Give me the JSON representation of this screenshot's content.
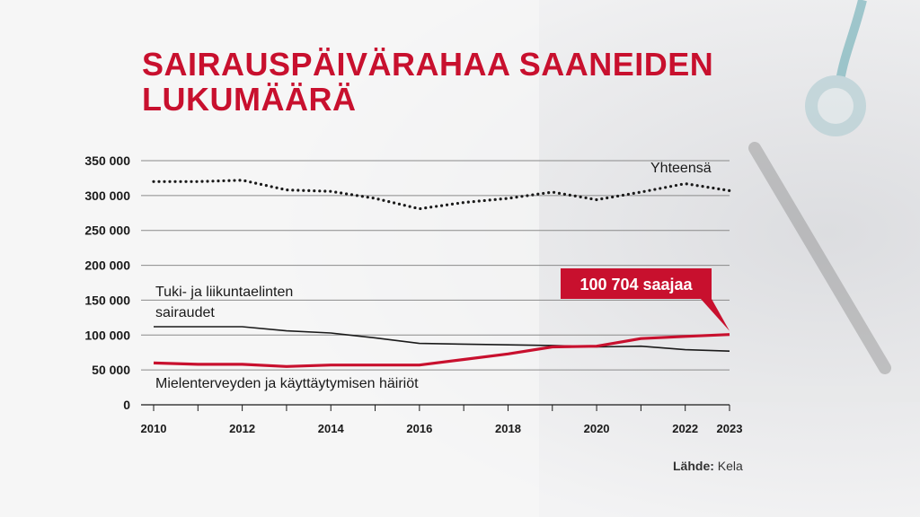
{
  "title": {
    "line1": "SAIRAUSPÄIVÄRAHAA SAANEIDEN",
    "line2": "LUKUMÄÄRÄ"
  },
  "source": {
    "label": "Lähde:",
    "value": "Kela"
  },
  "colors": {
    "accent": "#c8102e",
    "text": "#1a1a1a",
    "grid": "#8a8a8a"
  },
  "chart_data": {
    "type": "line",
    "title": "SAIRAUSPÄIVÄRAHAA SAANEIDEN LUKUMÄÄRÄ",
    "xlabel": "",
    "ylabel": "",
    "x": [
      2010,
      2011,
      2012,
      2013,
      2014,
      2015,
      2016,
      2017,
      2018,
      2019,
      2020,
      2021,
      2022,
      2023
    ],
    "xticks": [
      "2010",
      "2012",
      "2014",
      "2016",
      "2018",
      "2020",
      "2022",
      "2023"
    ],
    "xlim": [
      2010,
      2023
    ],
    "ylim": [
      0,
      350000
    ],
    "yticks": [
      {
        "value": 0,
        "label": "0"
      },
      {
        "value": 50000,
        "label": "50 000"
      },
      {
        "value": 100000,
        "label": "100 000"
      },
      {
        "value": 150000,
        "label": "150 000"
      },
      {
        "value": 200000,
        "label": "200 000"
      },
      {
        "value": 250000,
        "label": "250 000"
      },
      {
        "value": 300000,
        "label": "300 000"
      },
      {
        "value": 350000,
        "label": "350 000"
      }
    ],
    "grid": true,
    "series": [
      {
        "name": "Yhteensä",
        "style": "dotted",
        "color": "#1a1a1a",
        "values": [
          320000,
          320000,
          322000,
          308000,
          306000,
          296000,
          281000,
          290000,
          296000,
          305000,
          294000,
          305000,
          317000,
          307000
        ]
      },
      {
        "name": "Tuki- ja liikuntaelinten sairaudet",
        "label_lines": [
          "Tuki- ja liikuntaelinten",
          "sairaudet"
        ],
        "style": "solid",
        "color": "#1a1a1a",
        "values": [
          112000,
          112000,
          112000,
          106000,
          103000,
          96000,
          88000,
          87000,
          86000,
          85000,
          83000,
          84000,
          79000,
          77000
        ]
      },
      {
        "name": "Mielenterveyden ja käyttäytymisen häiriöt",
        "style": "solid-thick",
        "color": "#c8102e",
        "values": [
          60000,
          58000,
          58000,
          55000,
          57000,
          57000,
          57000,
          65000,
          73000,
          83000,
          84000,
          95000,
          98000,
          100704
        ]
      }
    ],
    "annotations": [
      {
        "text": "100 704 saajaa",
        "series": "Mielenterveyden ja käyttäytymisen häiriöt",
        "x": 2023,
        "value": 100704
      }
    ]
  }
}
